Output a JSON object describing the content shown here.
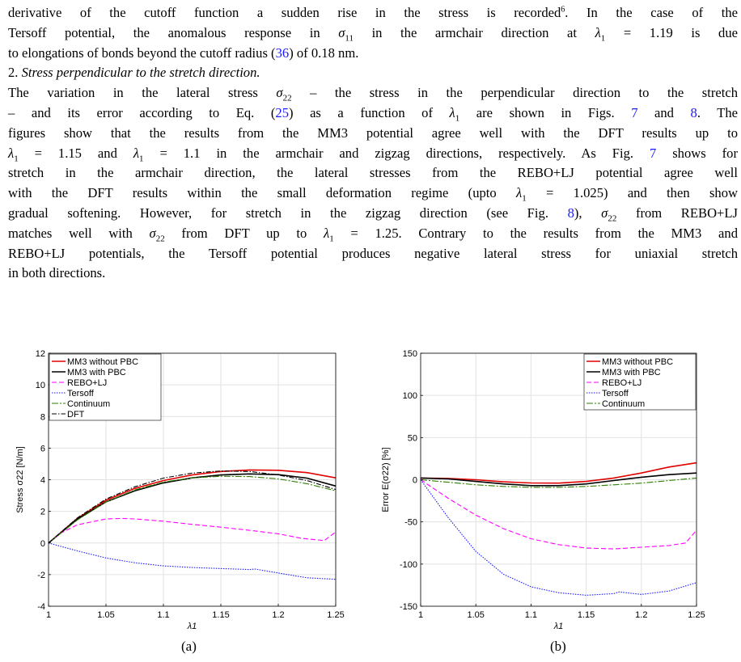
{
  "paragraphs": [
    {
      "lines": [
        {
          "html": "derivative of the cutoff function a sudden rise in the stress is recorded<sup>6</sup>. In the case of the"
        },
        {
          "html": "Tersoff potential, the anomalous response in <i>σ</i><sub>11</sub> in the armchair direction at <i>λ</i><sub>1</sub> = 1.19 is due"
        },
        {
          "html": "to elongations of bonds beyond the cutoff radius (<span class=\"link\">36</span>) of 0.18 nm.",
          "last": true
        }
      ]
    },
    {
      "lines": [
        {
          "html": "2. <span class=\"it\">Stress perpendicular to the stretch direction.</span>",
          "last": true
        }
      ]
    },
    {
      "lines": [
        {
          "html": "The variation in the lateral stress <i>σ</i><sub>22</sub> – the stress in the perpendicular direction to the stretch"
        },
        {
          "html": "– and its error according to Eq. (<span class=\"link\">25</span>) as a function of <i>λ</i><sub>1</sub> are shown in Figs. <span class=\"link\">7</span> and <span class=\"link\">8</span>. The"
        },
        {
          "html": "figures show that the results from the MM3 potential agree well with the DFT results up to"
        },
        {
          "html": "<i>λ</i><sub>1</sub> = 1.15 and <i>λ</i><sub>1</sub> = 1.1 in the armchair and zigzag directions, respectively. As Fig. <span class=\"link\">7</span> shows for"
        },
        {
          "html": "stretch in the armchair direction, the lateral stresses from the REBO+LJ potential agree well"
        },
        {
          "html": "with the DFT results within the small deformation regime (upto <i>λ</i><sub>1</sub> = 1.025) and then show"
        },
        {
          "html": "gradual softening. However, for stretch in the zigzag direction (see Fig. <span class=\"link\">8</span>), <i>σ</i><sub>22</sub> from REBO+LJ"
        },
        {
          "html": "matches well with <i>σ</i><sub>22</sub> from DFT up to <i>λ</i><sub>1</sub> = 1.25. Contrary to the results from the MM3 and"
        },
        {
          "html": "REBO+LJ potentials, the Tersoff potential produces negative lateral stress for uniaxial stretch"
        },
        {
          "html": "in both directions.",
          "last": true
        }
      ]
    }
  ],
  "captions": {
    "a": "(a)",
    "b": "(b)"
  },
  "chart_data": [
    {
      "type": "line",
      "xlabel": "λ1",
      "ylabel": "Stress σ22 [N/m]",
      "xlim": [
        1,
        1.25
      ],
      "ylim": [
        -4,
        12
      ],
      "xticks": [
        1,
        1.05,
        1.1,
        1.15,
        1.2,
        1.25
      ],
      "xtick_labels": [
        "1",
        "1.05",
        "1.1",
        "1.15",
        "1.2",
        "1.25"
      ],
      "yticks": [
        -4,
        -2,
        0,
        2,
        4,
        6,
        8,
        10,
        12
      ],
      "ytick_labels": [
        "-4",
        "-2",
        "0",
        "2",
        "4",
        "6",
        "8",
        "10",
        "12"
      ],
      "grid": true,
      "legend": "top-left",
      "series": [
        {
          "name": "MM3 without PBC",
          "color": "#e00000",
          "dash": "solid",
          "x": [
            1,
            1.025,
            1.05,
            1.075,
            1.1,
            1.125,
            1.15,
            1.175,
            1.2,
            1.225,
            1.25
          ],
          "y": [
            0,
            1.55,
            2.7,
            3.45,
            3.95,
            4.3,
            4.52,
            4.62,
            4.6,
            4.45,
            4.12
          ]
        },
        {
          "name": "MM3 with PBC",
          "color": "#000000",
          "dash": "solid",
          "x": [
            1,
            1.025,
            1.05,
            1.075,
            1.1,
            1.125,
            1.15,
            1.175,
            1.2,
            1.225,
            1.25
          ],
          "y": [
            0,
            1.5,
            2.6,
            3.3,
            3.8,
            4.12,
            4.3,
            4.37,
            4.32,
            4.1,
            3.6
          ]
        },
        {
          "name": "REBO+LJ",
          "color": "#ff00ff",
          "dash": "6,3",
          "x": [
            1,
            1.01,
            1.025,
            1.05,
            1.065,
            1.075,
            1.1,
            1.125,
            1.15,
            1.175,
            1.2,
            1.22,
            1.24,
            1.25
          ],
          "y": [
            0,
            0.6,
            1.15,
            1.52,
            1.55,
            1.52,
            1.38,
            1.18,
            1.0,
            0.8,
            0.58,
            0.3,
            0.15,
            0.7
          ]
        },
        {
          "name": "Tersoff",
          "color": "#1a1aff",
          "dash": "1.5,1.5",
          "x": [
            1,
            1.025,
            1.05,
            1.075,
            1.1,
            1.125,
            1.15,
            1.175,
            1.18,
            1.2,
            1.225,
            1.25
          ],
          "y": [
            0,
            -0.5,
            -0.95,
            -1.25,
            -1.45,
            -1.55,
            -1.62,
            -1.68,
            -1.65,
            -1.9,
            -2.2,
            -2.3
          ]
        },
        {
          "name": "Continuum",
          "color": "#2e7d00",
          "dash": "8,2,2,2",
          "x": [
            1,
            1.025,
            1.05,
            1.075,
            1.1,
            1.125,
            1.15,
            1.175,
            1.2,
            1.225,
            1.25
          ],
          "y": [
            0,
            1.45,
            2.6,
            3.35,
            3.85,
            4.12,
            4.22,
            4.2,
            4.05,
            3.75,
            3.3
          ]
        },
        {
          "name": "DFT",
          "color": "#000000",
          "dash": "6,2,1.5,2",
          "x": [
            1,
            1.025,
            1.05,
            1.075,
            1.1,
            1.125,
            1.15,
            1.175,
            1.2,
            1.225,
            1.25
          ],
          "y": [
            0,
            1.58,
            2.78,
            3.55,
            4.1,
            4.42,
            4.55,
            4.52,
            4.3,
            3.95,
            3.38
          ]
        }
      ]
    },
    {
      "type": "line",
      "xlabel": "λ1",
      "ylabel": "Error E(σ22) [%]",
      "xlim": [
        1,
        1.25
      ],
      "ylim": [
        -150,
        150
      ],
      "xticks": [
        1,
        1.05,
        1.1,
        1.15,
        1.2,
        1.25
      ],
      "xtick_labels": [
        "1",
        "1.05",
        "1.1",
        "1.15",
        "1.2",
        "1.25"
      ],
      "yticks": [
        -150,
        -100,
        -50,
        0,
        50,
        100,
        150
      ],
      "ytick_labels": [
        "-150",
        "-100",
        "-50",
        "0",
        "50",
        "100",
        "150"
      ],
      "grid": true,
      "legend": "top-right",
      "series": [
        {
          "name": "MM3 without PBC",
          "color": "#e00000",
          "dash": "solid",
          "x": [
            1,
            1.025,
            1.05,
            1.075,
            1.1,
            1.125,
            1.15,
            1.175,
            1.2,
            1.225,
            1.25
          ],
          "y": [
            2,
            1.5,
            0,
            -2.5,
            -3.8,
            -4,
            -2,
            2,
            8,
            15,
            20
          ]
        },
        {
          "name": "MM3 with PBC",
          "color": "#000000",
          "dash": "solid",
          "x": [
            1,
            1.025,
            1.05,
            1.075,
            1.1,
            1.125,
            1.15,
            1.175,
            1.2,
            1.225,
            1.25
          ],
          "y": [
            2,
            1,
            -2,
            -5,
            -7,
            -7,
            -5,
            -1,
            3,
            6,
            8
          ]
        },
        {
          "name": "REBO+LJ",
          "color": "#ff00ff",
          "dash": "6,3",
          "x": [
            1,
            1.025,
            1.05,
            1.075,
            1.1,
            1.125,
            1.15,
            1.175,
            1.2,
            1.225,
            1.24,
            1.25
          ],
          "y": [
            0,
            -22,
            -42,
            -58,
            -70,
            -77,
            -81,
            -82,
            -80,
            -78,
            -75,
            -60
          ]
        },
        {
          "name": "Tersoff",
          "color": "#1a1aff",
          "dash": "1.5,1.5",
          "x": [
            1,
            1.025,
            1.05,
            1.075,
            1.1,
            1.125,
            1.15,
            1.175,
            1.18,
            1.2,
            1.225,
            1.25
          ],
          "y": [
            0,
            -45,
            -85,
            -112,
            -127,
            -134,
            -137,
            -135,
            -133,
            -136,
            -132,
            -122
          ]
        },
        {
          "name": "Continuum",
          "color": "#2e7d00",
          "dash": "8,2,2,2",
          "x": [
            1,
            1.025,
            1.05,
            1.075,
            1.1,
            1.125,
            1.15,
            1.175,
            1.2,
            1.225,
            1.25
          ],
          "y": [
            0,
            -3,
            -6,
            -8,
            -9,
            -9,
            -8,
            -6,
            -4,
            -1,
            2
          ]
        }
      ]
    }
  ]
}
